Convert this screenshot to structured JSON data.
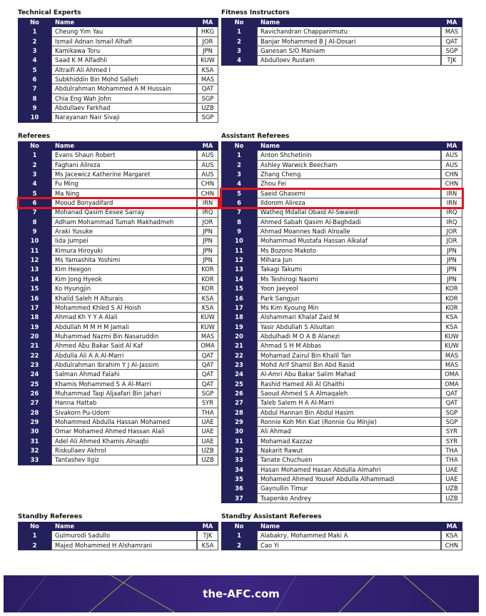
{
  "sections": [
    {
      "title": "Technical Experts",
      "header": [
        "No",
        "Name",
        "MA"
      ],
      "rows": [
        [
          1,
          "Cheung Yim Yau",
          "HKG"
        ],
        [
          2,
          "Ismail Adnan Ismail Alhafi",
          "JOR"
        ],
        [
          3,
          "Kamikawa Toru",
          "JPN"
        ],
        [
          4,
          "Saad K M Alfadhli",
          "KUW"
        ],
        [
          5,
          "Altraifi Ali Ahmed I",
          "KSA"
        ],
        [
          6,
          "Subkhiddin Bin Mohd Salleh",
          "MAS"
        ],
        [
          7,
          "Abdulrahman Mohammed A M Hussain",
          "QAT"
        ],
        [
          8,
          "Chia Eng Wah John",
          "SGP"
        ],
        [
          9,
          "Abdullaev Farkhad",
          "UZB"
        ],
        [
          10,
          "Narayanan Nair Sivaji",
          "SGP"
        ]
      ]
    },
    {
      "title": "Fitness Instructors",
      "header": [
        "No",
        "Name",
        "MA"
      ],
      "rows": [
        [
          1,
          "Ravichandran Chappanimutu",
          "MAS"
        ],
        [
          2,
          "Banjar Mohammed B J Al-Dosari",
          "QAT"
        ],
        [
          3,
          "Ganesan S/O Maniam",
          "SGP"
        ],
        [
          4,
          "Abdulloev Rustam",
          "TJK"
        ]
      ]
    },
    {
      "title": "Referees",
      "header": [
        "No",
        "Name",
        "MA"
      ],
      "rows": [
        [
          1,
          "Evans Shaun Robert",
          "AUS"
        ],
        [
          2,
          "Faghani Alireza",
          "AUS"
        ],
        [
          3,
          "Ms Jacewicz Katherine Margaret",
          "AUS"
        ],
        [
          4,
          "Fu Ming",
          "CHN"
        ],
        [
          5,
          "Ma Ning",
          "CHN"
        ],
        [
          6,
          "Mooud Bonyadifard",
          "IRN"
        ],
        [
          7,
          "Mohanad Qasim Eesee Sarray",
          "IRQ"
        ],
        [
          8,
          "Adham Mohammad Tumah Makhadmeh",
          "JOR"
        ],
        [
          9,
          "Araki Yusuke",
          "JPN"
        ],
        [
          10,
          "Iida Jumpei",
          "JPN"
        ],
        [
          11,
          "Kimura Hiroyuki",
          "JPN"
        ],
        [
          12,
          "Ms Yamashita Yoshimi",
          "JPN"
        ],
        [
          13,
          "Kim Heegon",
          "KOR"
        ],
        [
          14,
          "Kim Jong Hyeok",
          "KOR"
        ],
        [
          15,
          "Ko Hyungjin",
          "KOR"
        ],
        [
          16,
          "Khalid Saleh H Alturais",
          "KSA"
        ],
        [
          17,
          "Mohammed Khled S Al Hoish",
          "KSA"
        ],
        [
          18,
          "Ahmad Kh Y Y A Alali",
          "KUW"
        ],
        [
          19,
          "Abdullah M M H M Jamali",
          "KUW"
        ],
        [
          20,
          "Muhammad Nazmi Bin Nasaruddin",
          "MAS"
        ],
        [
          21,
          "Ahmed Abu Bakar Said Al Kaf",
          "OMA"
        ],
        [
          22,
          "Abdulla Ali A A Al-Marri",
          "QAT"
        ],
        [
          23,
          "Abdulrahman Ibrahim Y J Al-Jassim",
          "QAT"
        ],
        [
          24,
          "Salman Ahmad Falahi",
          "QAT"
        ],
        [
          25,
          "Khamis Mohammed S A Al-Marri",
          "QAT"
        ],
        [
          26,
          "Muhammad Taqi Aljaafari Bin Jahari",
          "SGP"
        ],
        [
          27,
          "Hanna Hattab",
          "SYR"
        ],
        [
          28,
          "Sivakorn Pu-Udom",
          "THA"
        ],
        [
          29,
          "Mohammed Abdulla Hassan Mohamed",
          "UAE"
        ],
        [
          30,
          "Omar Mohamed Ahmed Hassan Alali",
          "UAE"
        ],
        [
          31,
          "Adel Ali Ahmed Khamis Alnaqbi",
          "UAE"
        ],
        [
          32,
          "Riskullaev Akhrol",
          "UZB"
        ],
        [
          33,
          "Tantashev Ilgiz",
          "UZB"
        ]
      ]
    },
    {
      "title": "Assistant Referees",
      "header": [
        "No",
        "Name",
        "MA"
      ],
      "rows": [
        [
          1,
          "Anton Shchetinin",
          "AUS"
        ],
        [
          2,
          "Ashley Warwick Beecham",
          "AUS"
        ],
        [
          3,
          "Zhang Cheng",
          "CHN"
        ],
        [
          4,
          "Zhou Fei",
          "CHN"
        ],
        [
          5,
          "Saeid Ghasemi",
          "IRN"
        ],
        [
          6,
          "Ildorom Alireza",
          "IRN"
        ],
        [
          7,
          "Watheq Mdallal Obaid Al-Swaiedi",
          "IRQ"
        ],
        [
          8,
          "Ahmed Sabah Qasim Al-Baghdadi",
          "IRQ"
        ],
        [
          9,
          "Ahmad Moannes Nadi Alroalle",
          "JOR"
        ],
        [
          10,
          "Mohammad Mustafa Hassan Alkalaf",
          "JOR"
        ],
        [
          11,
          "Ms Bozono Makoto",
          "JPN"
        ],
        [
          12,
          "Mihara Jun",
          "JPN"
        ],
        [
          13,
          "Takagi Takumi",
          "JPN"
        ],
        [
          14,
          "Ms Teshirogi Naomi",
          "JPN"
        ],
        [
          15,
          "Yoon Jaeyeol",
          "KOR"
        ],
        [
          16,
          "Park Sangjun",
          "KOR"
        ],
        [
          17,
          "Ms Kim Kyoung Min",
          "KOR"
        ],
        [
          18,
          "Alshammari Khalaf Zaid M",
          "KSA"
        ],
        [
          19,
          "Yasir Abdullah S Alsultan",
          "KSA"
        ],
        [
          20,
          "Abdulhadi M O A B Alanezi",
          "KUW"
        ],
        [
          21,
          "Ahmad S H M Abbas",
          "KUW"
        ],
        [
          22,
          "Mohamad Zairul Bin Khalil Tan",
          "MAS"
        ],
        [
          23,
          "Mohd Arif Shamil Bin Abd Rasid",
          "MAS"
        ],
        [
          24,
          "Al-Amri Abu Bakar Salim Mahad",
          "OMA"
        ],
        [
          25,
          "Rashid Hamed Ali Al Ghaithi",
          "OMA"
        ],
        [
          26,
          "Saoud Ahmed S A Almaqaleh",
          "QAT"
        ],
        [
          27,
          "Taleb Salem H A Al-Marri",
          "QAT"
        ],
        [
          28,
          "Abdul Hannan Bin Abdul Hasim",
          "SGP"
        ],
        [
          29,
          "Ronnie Koh Min Kiat (Ronnie Gu Minjie)",
          "SGP"
        ],
        [
          30,
          "Ali Ahmad",
          "SYR"
        ],
        [
          31,
          "Mohamad Kazzaz",
          "SYR"
        ],
        [
          32,
          "Nakarit Rawut",
          "THA"
        ],
        [
          33,
          "Tanate Chuchuen",
          "THA"
        ],
        [
          34,
          "Hasan Mohamed Hasan Abdulla Almahri",
          "UAE"
        ],
        [
          35,
          "Mohamed Ahmed Yousef Abdulla Alhammadi",
          "UAE"
        ],
        [
          36,
          "Gaynullin Timur",
          "UZB"
        ],
        [
          37,
          "Tsapenko Andrey",
          "UZB"
        ]
      ]
    },
    {
      "title": "Standby Referees",
      "header": [
        "No",
        "Name",
        "MA"
      ],
      "rows": [
        [
          1,
          "Gulmurodi Sadullo",
          "TJK"
        ],
        [
          2,
          "Majed Mohammed H Alshamrani",
          "KSA"
        ]
      ]
    },
    {
      "title": "Standby Assistant Referees",
      "header": [
        "No",
        "Name",
        "MA"
      ],
      "rows": [
        [
          1,
          "Alabakry, Mohammed Maki A",
          "KSA"
        ],
        [
          2,
          "Cao Yi",
          "CHN"
        ]
      ]
    }
  ],
  "footer": {
    "brand": "the-AFC.com"
  }
}
